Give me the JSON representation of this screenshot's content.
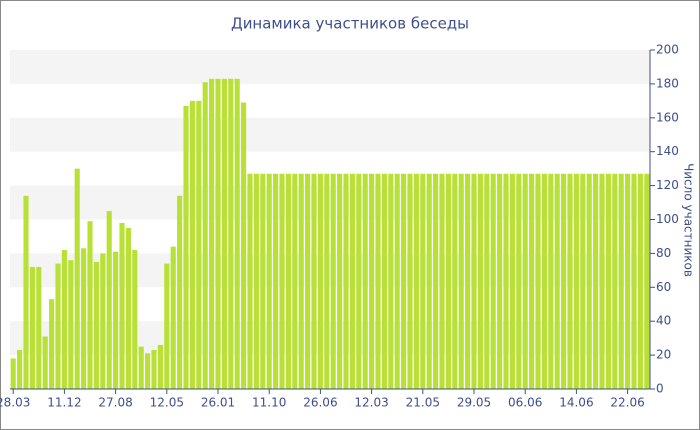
{
  "chart_data": {
    "type": "bar",
    "title": "Динамика участников беседы",
    "y_label": "Число участников",
    "categories": [
      "28.03",
      null,
      null,
      null,
      null,
      null,
      null,
      null,
      "11.12",
      null,
      null,
      null,
      null,
      null,
      null,
      null,
      "27.08",
      null,
      null,
      null,
      null,
      null,
      null,
      null,
      "12.05",
      null,
      null,
      null,
      null,
      null,
      null,
      null,
      "26.01",
      null,
      null,
      null,
      null,
      null,
      null,
      null,
      "11.10",
      null,
      null,
      null,
      null,
      null,
      null,
      null,
      "26.06",
      null,
      null,
      null,
      null,
      null,
      null,
      null,
      "12.03",
      null,
      null,
      null,
      null,
      null,
      null,
      null,
      "21.05",
      null,
      null,
      null,
      null,
      null,
      null,
      null,
      "29.05",
      null,
      null,
      null,
      null,
      null,
      null,
      null,
      "06.06",
      null,
      null,
      null,
      null,
      null,
      null,
      null,
      "14.06",
      null,
      null,
      null,
      null,
      null,
      null,
      null,
      "22.06",
      null,
      null,
      null
    ],
    "values": [
      18,
      23,
      114,
      72,
      72,
      31,
      53,
      74,
      82,
      76,
      130,
      83,
      99,
      75,
      80,
      105,
      81,
      98,
      95,
      82,
      25,
      21,
      23,
      26,
      74,
      84,
      114,
      167,
      170,
      170,
      181,
      183,
      183,
      183,
      183,
      183,
      169,
      127,
      127,
      127,
      127,
      127,
      127,
      127,
      127,
      127,
      127,
      127,
      127,
      127,
      127,
      127,
      127,
      127,
      127,
      127,
      127,
      127,
      127,
      127,
      127,
      127,
      127,
      127,
      127,
      127,
      127,
      127,
      127,
      127,
      127,
      127,
      127,
      127,
      127,
      127,
      127,
      127,
      127,
      127,
      127,
      127,
      127,
      127,
      127,
      127,
      127,
      127,
      127,
      127,
      127,
      127,
      127,
      127,
      127,
      127,
      127,
      127,
      127,
      127
    ],
    "color": "#b8e035",
    "ylim": [
      0,
      200
    ],
    "yticks": [
      0,
      20,
      40,
      60,
      80,
      100,
      120,
      140,
      160,
      180,
      200
    ],
    "grid": true
  }
}
